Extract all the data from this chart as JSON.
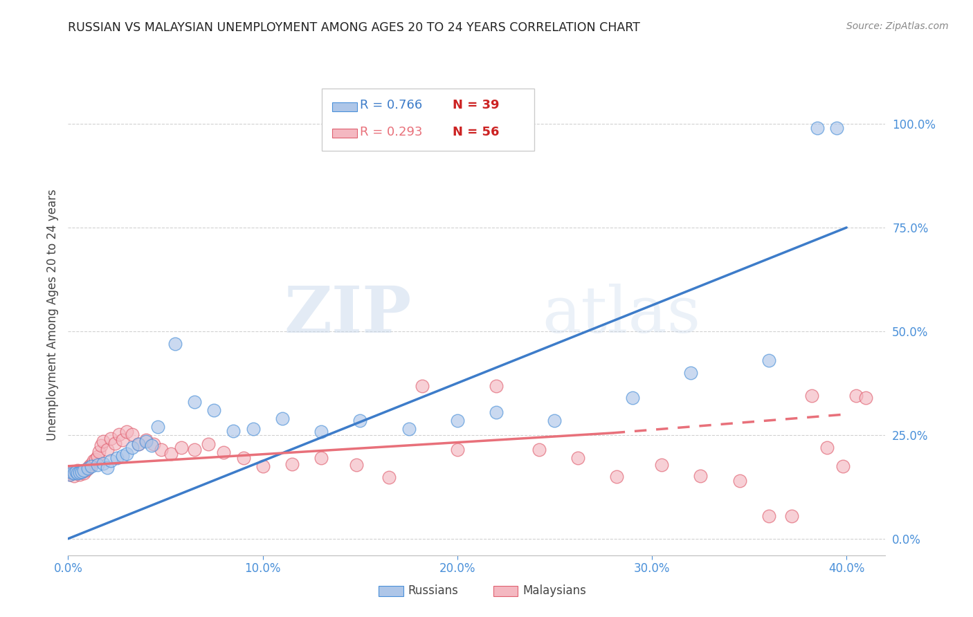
{
  "title": "RUSSIAN VS MALAYSIAN UNEMPLOYMENT AMONG AGES 20 TO 24 YEARS CORRELATION CHART",
  "source": "Source: ZipAtlas.com",
  "ylabel": "Unemployment Among Ages 20 to 24 years",
  "xlim": [
    0.0,
    0.42
  ],
  "ylim": [
    -0.04,
    1.12
  ],
  "xticks": [
    0.0,
    0.1,
    0.2,
    0.3,
    0.4
  ],
  "yticks": [
    0.0,
    0.25,
    0.5,
    0.75,
    1.0
  ],
  "ytick_labels": [
    "0.0%",
    "25.0%",
    "50.0%",
    "75.0%",
    "100.0%"
  ],
  "xtick_labels": [
    "0.0%",
    "10.0%",
    "20.0%",
    "30.0%",
    "40.0%"
  ],
  "legend_r1": "R = 0.766",
  "legend_n1": "N = 39",
  "legend_r2": "R = 0.293",
  "legend_n2": "N = 56",
  "watermark_zip": "ZIP",
  "watermark_atlas": "atlas",
  "blue_fill": "#aec6e8",
  "blue_edge": "#4a90d9",
  "pink_fill": "#f4b8c1",
  "pink_edge": "#e06070",
  "blue_line_color": "#3d7cc9",
  "pink_line_color": "#e8707a",
  "blue_r_color": "#3d7cc9",
  "pink_r_color": "#e8707a",
  "n_color": "#cc2222",
  "tick_color": "#4a90d9",
  "grid_color": "#cccccc",
  "bg_color": "#ffffff",
  "title_color": "#222222",
  "source_color": "#888888",
  "ylabel_color": "#444444",
  "legend_text_color": "#444444",
  "blue_line": [
    0.0,
    0.0,
    0.4,
    0.75
  ],
  "pink_line_solid": [
    0.0,
    0.175,
    0.28,
    0.255
  ],
  "pink_line_dash": [
    0.28,
    0.255,
    0.4,
    0.3
  ],
  "russians_x": [
    0.001,
    0.002,
    0.003,
    0.004,
    0.005,
    0.006,
    0.007,
    0.008,
    0.01,
    0.012,
    0.015,
    0.018,
    0.02,
    0.022,
    0.025,
    0.028,
    0.03,
    0.033,
    0.036,
    0.04,
    0.043,
    0.046,
    0.055,
    0.065,
    0.075,
    0.085,
    0.095,
    0.11,
    0.13,
    0.15,
    0.175,
    0.2,
    0.22,
    0.25,
    0.29,
    0.32,
    0.36,
    0.385,
    0.395
  ],
  "russians_y": [
    0.155,
    0.16,
    0.158,
    0.162,
    0.158,
    0.16,
    0.162,
    0.165,
    0.17,
    0.175,
    0.178,
    0.182,
    0.172,
    0.188,
    0.195,
    0.2,
    0.205,
    0.22,
    0.228,
    0.235,
    0.225,
    0.27,
    0.47,
    0.33,
    0.31,
    0.26,
    0.265,
    0.29,
    0.258,
    0.285,
    0.265,
    0.285,
    0.305,
    0.285,
    0.34,
    0.4,
    0.43,
    0.99,
    0.99
  ],
  "malaysians_x": [
    0.001,
    0.002,
    0.003,
    0.004,
    0.005,
    0.006,
    0.007,
    0.008,
    0.009,
    0.01,
    0.011,
    0.012,
    0.013,
    0.014,
    0.015,
    0.016,
    0.017,
    0.018,
    0.02,
    0.022,
    0.024,
    0.026,
    0.028,
    0.03,
    0.033,
    0.036,
    0.04,
    0.044,
    0.048,
    0.053,
    0.058,
    0.065,
    0.072,
    0.08,
    0.09,
    0.1,
    0.115,
    0.13,
    0.148,
    0.165,
    0.182,
    0.2,
    0.22,
    0.242,
    0.262,
    0.282,
    0.305,
    0.325,
    0.345,
    0.36,
    0.372,
    0.382,
    0.39,
    0.398,
    0.405,
    0.41
  ],
  "malaysians_y": [
    0.155,
    0.158,
    0.152,
    0.16,
    0.165,
    0.155,
    0.162,
    0.158,
    0.165,
    0.17,
    0.175,
    0.18,
    0.188,
    0.192,
    0.198,
    0.21,
    0.225,
    0.235,
    0.215,
    0.242,
    0.23,
    0.252,
    0.238,
    0.258,
    0.252,
    0.228,
    0.238,
    0.228,
    0.215,
    0.205,
    0.22,
    0.215,
    0.228,
    0.208,
    0.195,
    0.175,
    0.18,
    0.195,
    0.178,
    0.148,
    0.368,
    0.215,
    0.368,
    0.215,
    0.195,
    0.15,
    0.178,
    0.152,
    0.14,
    0.055,
    0.055,
    0.345,
    0.22,
    0.175,
    0.345,
    0.34
  ]
}
